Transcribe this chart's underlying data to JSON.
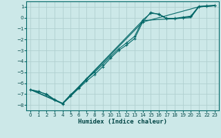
{
  "xlabel": "Humidex (Indice chaleur)",
  "background_color": "#cce8e8",
  "grid_color": "#b0d0d0",
  "line_color": "#006666",
  "xlim": [
    -0.5,
    23.5
  ],
  "ylim": [
    -8.5,
    1.5
  ],
  "xticks": [
    0,
    1,
    2,
    3,
    4,
    5,
    6,
    7,
    8,
    9,
    10,
    11,
    12,
    13,
    14,
    15,
    16,
    17,
    18,
    19,
    20,
    21,
    22,
    23
  ],
  "yticks": [
    1,
    0,
    -1,
    -2,
    -3,
    -4,
    -5,
    -6,
    -7,
    -8
  ],
  "line1_x": [
    0,
    1,
    2,
    3,
    4,
    5,
    6,
    7,
    8,
    9,
    10,
    11,
    12,
    13,
    14,
    15,
    16,
    17,
    18,
    19,
    20,
    21,
    22,
    23
  ],
  "line1_y": [
    -6.6,
    -6.8,
    -7.0,
    -7.5,
    -7.9,
    -7.2,
    -6.5,
    -5.8,
    -5.2,
    -4.5,
    -3.7,
    -3.0,
    -2.5,
    -1.9,
    -0.4,
    0.5,
    0.3,
    -0.1,
    -0.1,
    0.0,
    0.1,
    1.0,
    1.05,
    1.1
  ],
  "line2_x": [
    0,
    1,
    2,
    3,
    4,
    5,
    6,
    7,
    8,
    9,
    10,
    11,
    12,
    13,
    14,
    15,
    16,
    17,
    18,
    19,
    20,
    21,
    22,
    23
  ],
  "line2_y": [
    -6.6,
    -6.75,
    -7.05,
    -7.55,
    -7.85,
    -7.05,
    -6.4,
    -5.6,
    -5.0,
    -4.3,
    -3.55,
    -2.85,
    -2.3,
    -1.7,
    -0.2,
    0.4,
    0.35,
    -0.05,
    -0.05,
    0.05,
    0.15,
    1.05,
    1.1,
    1.15
  ],
  "line3_x": [
    0,
    4,
    14,
    21,
    22,
    23
  ],
  "line3_y": [
    -6.6,
    -7.9,
    -0.4,
    1.0,
    1.05,
    1.1
  ],
  "line4_x": [
    0,
    3,
    4,
    14,
    20,
    21,
    22,
    23
  ],
  "line4_y": [
    -6.6,
    -7.5,
    -7.85,
    -0.25,
    0.0,
    1.0,
    1.05,
    1.1
  ]
}
